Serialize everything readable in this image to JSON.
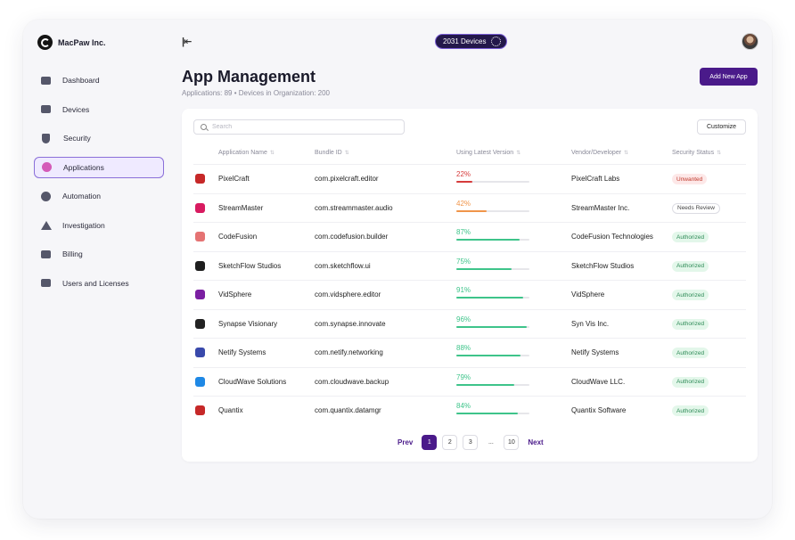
{
  "brand": {
    "name": "MacPaw Inc."
  },
  "top": {
    "devices_label": "2031 Devices"
  },
  "sidebar": {
    "items": [
      {
        "label": "Dashboard",
        "icon": "dashboard-icon"
      },
      {
        "label": "Devices",
        "icon": "monitor-icon"
      },
      {
        "label": "Security",
        "icon": "shield-icon"
      },
      {
        "label": "Applications",
        "icon": "app-icon",
        "active": true
      },
      {
        "label": "Automation",
        "icon": "automation-icon"
      },
      {
        "label": "Investigation",
        "icon": "warning-icon"
      },
      {
        "label": "Billing",
        "icon": "billing-icon"
      },
      {
        "label": "Users and Licenses",
        "icon": "users-icon"
      }
    ]
  },
  "header": {
    "title": "App Management",
    "subtitle": "Applications: 89 • Devices in Organization: 200",
    "add_button": "Add New App"
  },
  "toolbar": {
    "search_placeholder": "Search",
    "customize": "Customize"
  },
  "table": {
    "columns": [
      "Application Name",
      "Bundle ID",
      "Using Latest Version",
      "Vendor/Developer",
      "Security Status"
    ],
    "rows": [
      {
        "name": "PixelCraft",
        "bundle": "com.pixelcraft.editor",
        "version_pct": "22%",
        "vendor": "PixelCraft Labs",
        "status": "Unwanted"
      },
      {
        "name": "StreamMaster",
        "bundle": "com.streammaster.audio",
        "version_pct": "42%",
        "vendor": "StreamMaster Inc.",
        "status": "Needs Review"
      },
      {
        "name": "CodeFusion",
        "bundle": "com.codefusion.builder",
        "version_pct": "87%",
        "vendor": "CodeFusion Technologies",
        "status": "Authorized"
      },
      {
        "name": "SketchFlow Studios",
        "bundle": "com.sketchflow.ui",
        "version_pct": "75%",
        "vendor": "SketchFlow Studios",
        "status": "Authorized"
      },
      {
        "name": "VidSphere",
        "bundle": "com.vidsphere.editor",
        "version_pct": "91%",
        "vendor": "VidSphere",
        "status": "Authorized"
      },
      {
        "name": "Synapse Visionary",
        "bundle": "com.synapse.innovate",
        "version_pct": "96%",
        "vendor": "Syn Vis Inc.",
        "status": "Authorized"
      },
      {
        "name": "Netify Systems",
        "bundle": "com.netify.networking",
        "version_pct": "88%",
        "vendor": "Netify Systems",
        "status": "Authorized"
      },
      {
        "name": "CloudWave Solutions",
        "bundle": "com.cloudwave.backup",
        "version_pct": "79%",
        "vendor": "CloudWave LLC.",
        "status": "Authorized"
      },
      {
        "name": "Quantix",
        "bundle": "com.quantix.datamgr",
        "version_pct": "84%",
        "vendor": "Quantix Software",
        "status": "Authorized"
      }
    ]
  },
  "pagination": {
    "prev": "Prev",
    "pages": [
      "1",
      "2",
      "3",
      "...",
      "10"
    ],
    "next": "Next",
    "current": "1"
  },
  "colors": {
    "accent": "#4a1a8a",
    "low": "#d63b3b",
    "mid": "#f0954a",
    "high": "#3ec48a"
  }
}
